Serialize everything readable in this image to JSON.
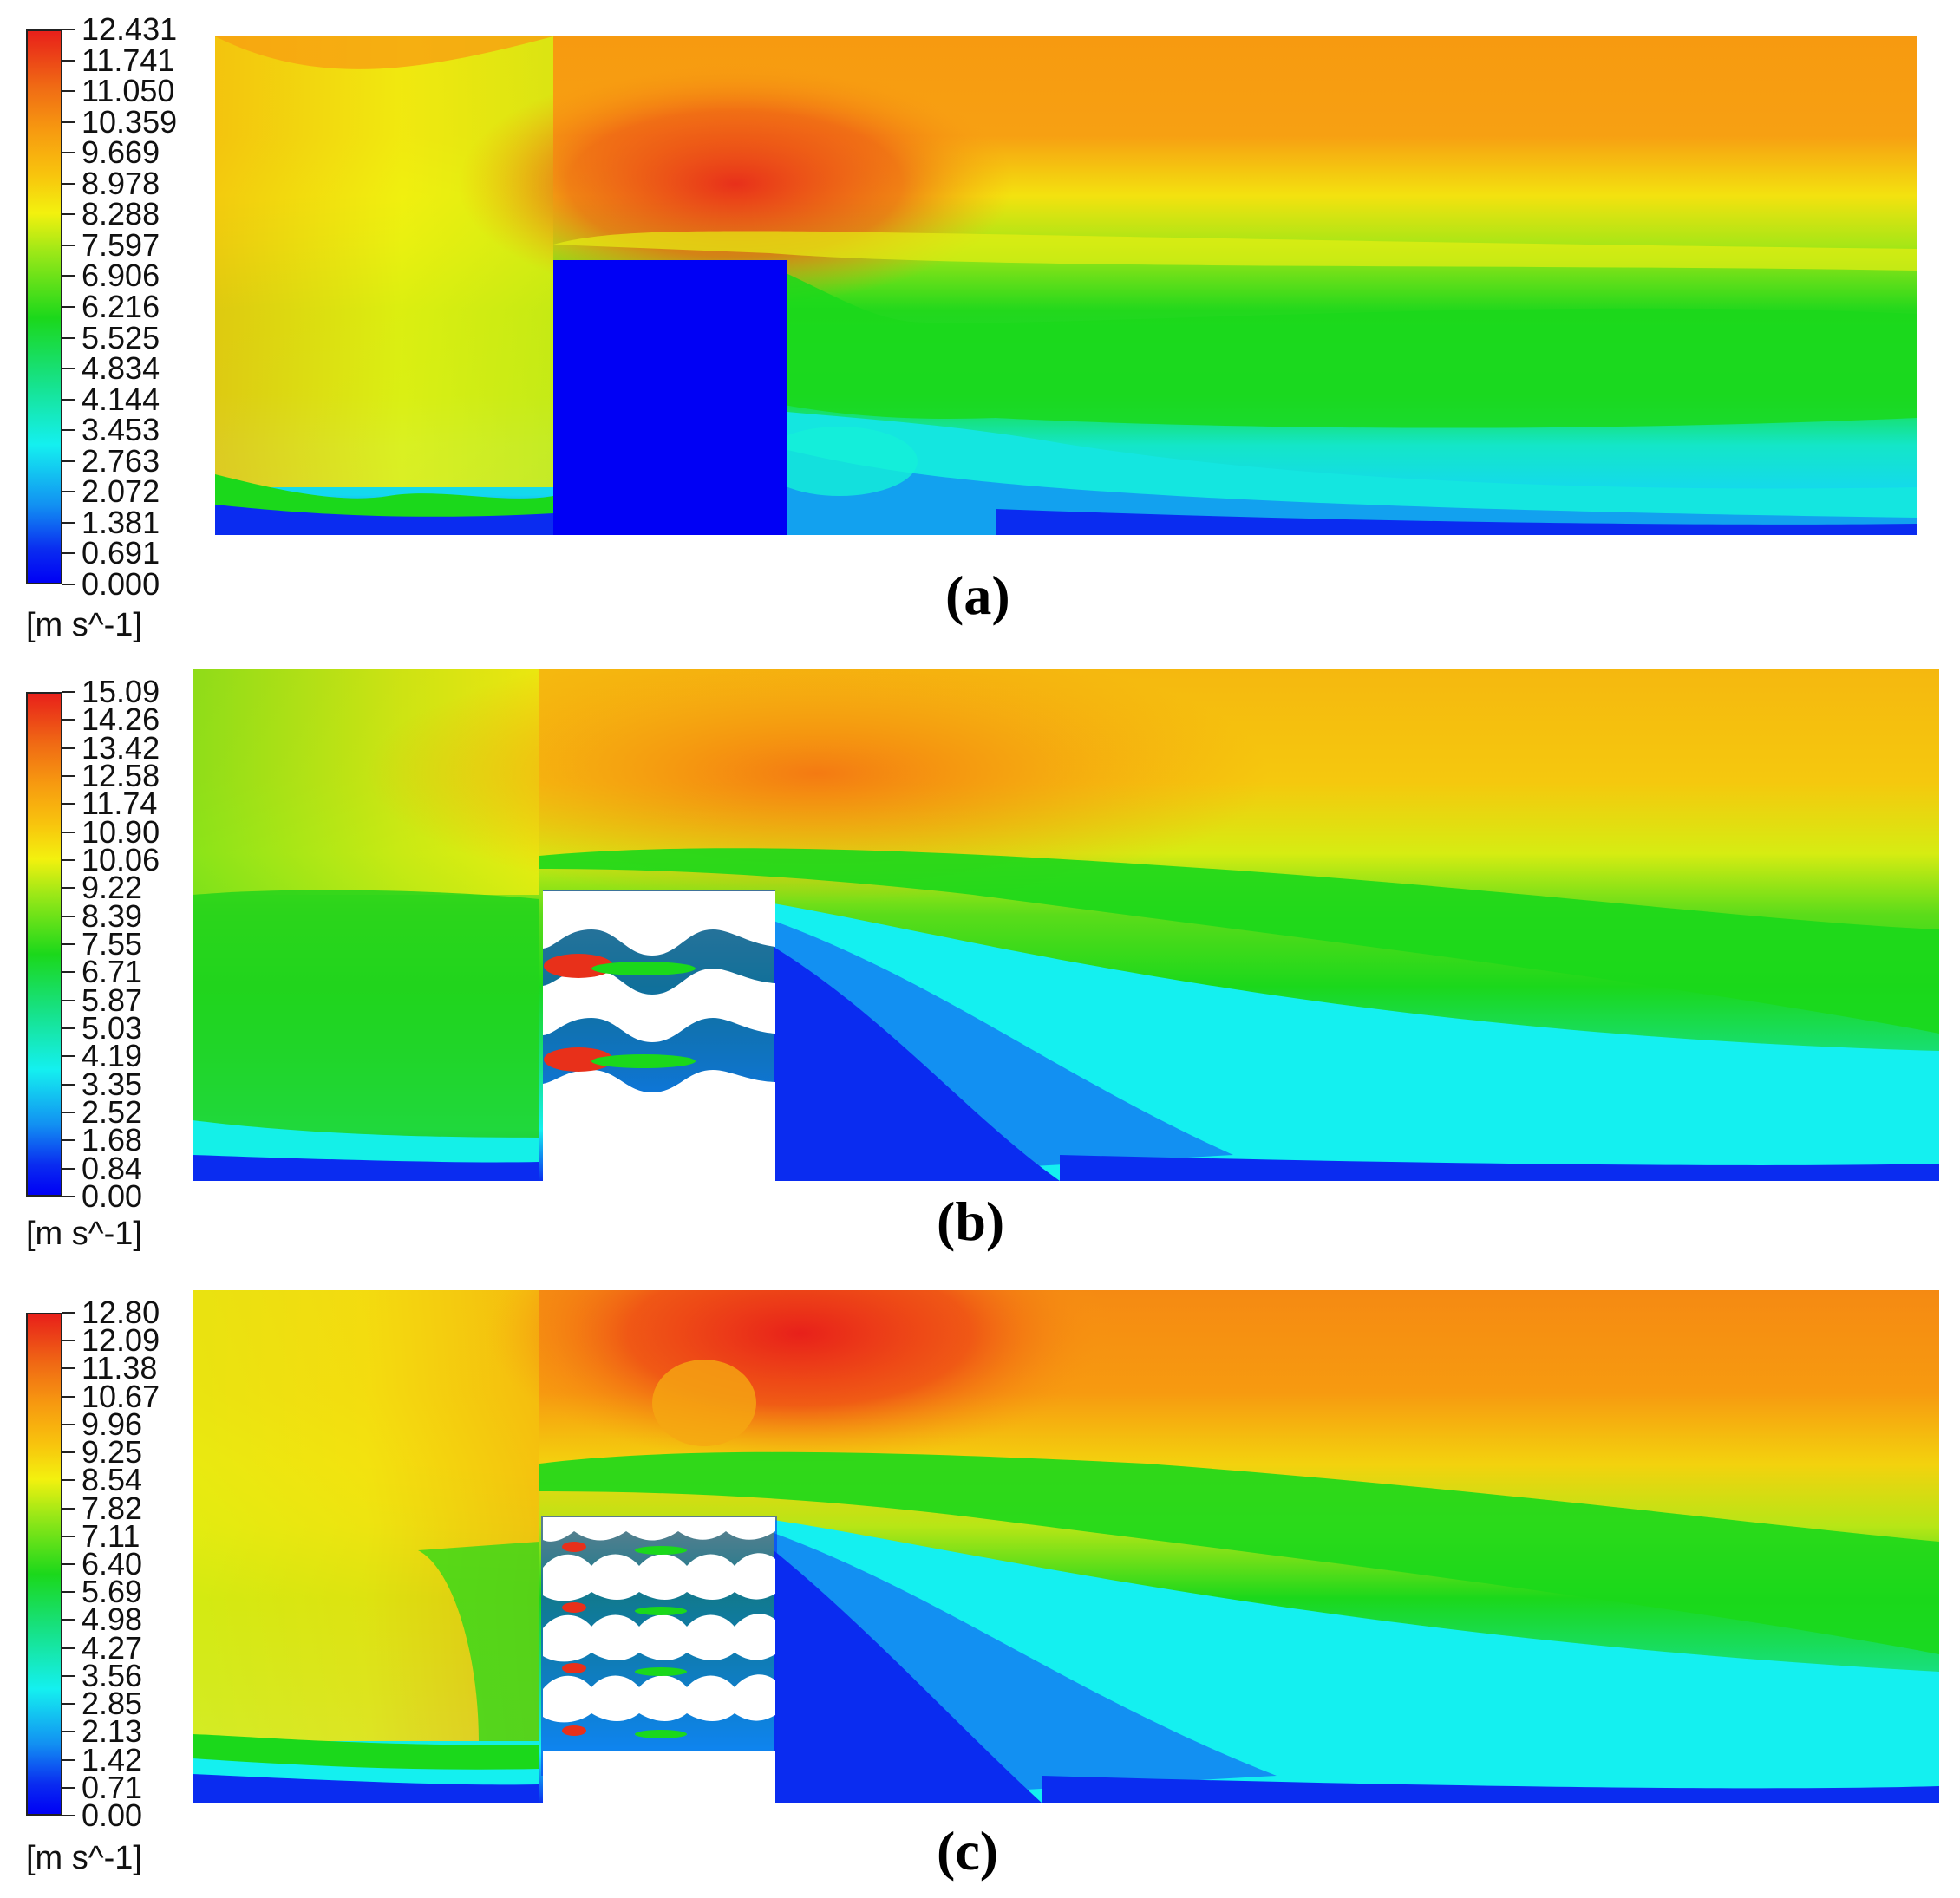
{
  "panels": [
    {
      "caption": "(a)",
      "units": "[m s^-1]",
      "scale_labels": [
        "12.431",
        "11.741",
        "11.050",
        "10.359",
        "9.669",
        "8.978",
        "8.288",
        "7.597",
        "6.906",
        "6.216",
        "5.525",
        "4.834",
        "4.144",
        "3.453",
        "2.763",
        "2.072",
        "1.381",
        "0.691",
        "0.000"
      ],
      "obstacle": "solid-block"
    },
    {
      "caption": "(b)",
      "units": "[m s^-1]",
      "scale_labels": [
        "15.09",
        "14.26",
        "13.42",
        "12.58",
        "11.74",
        "10.90",
        "10.06",
        "9.22",
        "8.39",
        "7.55",
        "6.71",
        "5.87",
        "5.03",
        "4.19",
        "3.35",
        "2.52",
        "1.68",
        "0.84",
        "0.00"
      ],
      "obstacle": "wavy-louvers"
    },
    {
      "caption": "(c)",
      "units": "[m s^-1]",
      "scale_labels": [
        "12.80",
        "12.09",
        "11.38",
        "10.67",
        "9.96",
        "9.25",
        "8.54",
        "7.82",
        "7.11",
        "6.40",
        "5.69",
        "4.98",
        "4.27",
        "3.56",
        "2.85",
        "2.13",
        "1.42",
        "0.71",
        "0.00"
      ],
      "obstacle": "scalloped-louvers"
    }
  ],
  "colors": {
    "max": "#e8201a",
    "orange": "#f79a10",
    "yellow": "#f3f10e",
    "green": "#1bd81b",
    "cyan": "#14f0f0",
    "blue": "#0a2cf0",
    "min": "#0000f5"
  }
}
